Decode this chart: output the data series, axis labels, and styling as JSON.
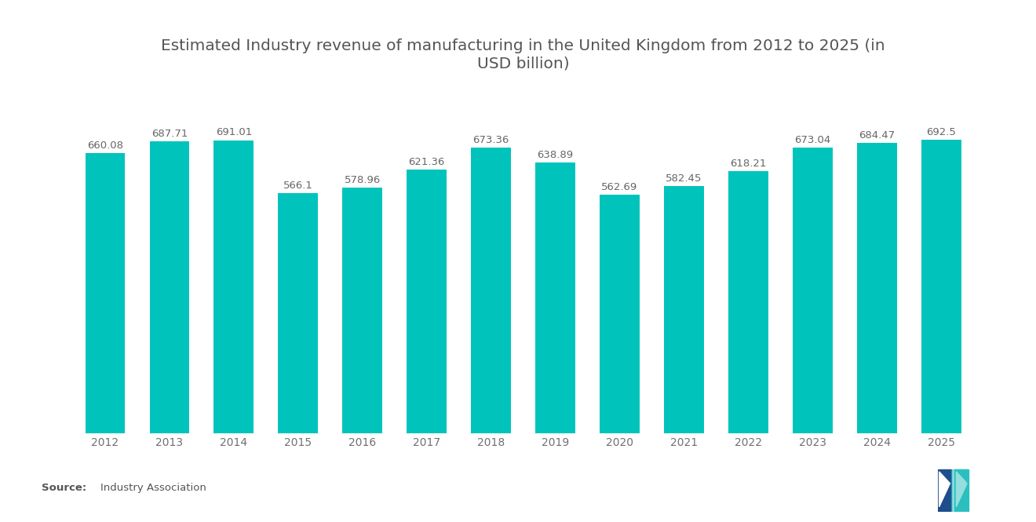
{
  "title": "Estimated Industry revenue of manufacturing in the United Kingdom from 2012 to 2025 (in\nUSD billion)",
  "years": [
    2012,
    2013,
    2014,
    2015,
    2016,
    2017,
    2018,
    2019,
    2020,
    2021,
    2022,
    2023,
    2024,
    2025
  ],
  "values": [
    660.08,
    687.71,
    691.01,
    566.1,
    578.96,
    621.36,
    673.36,
    638.89,
    562.69,
    582.45,
    618.21,
    673.04,
    684.47,
    692.5
  ],
  "bar_color": "#00C4BC",
  "background_color": "#ffffff",
  "title_fontsize": 14.5,
  "tick_fontsize": 10,
  "value_fontsize": 9.5,
  "ylim": [
    0,
    800
  ],
  "title_color": "#555555",
  "tick_color": "#707070",
  "value_color": "#666666",
  "logo_navy": "#1e4d8c",
  "logo_teal": "#2bbfbf"
}
